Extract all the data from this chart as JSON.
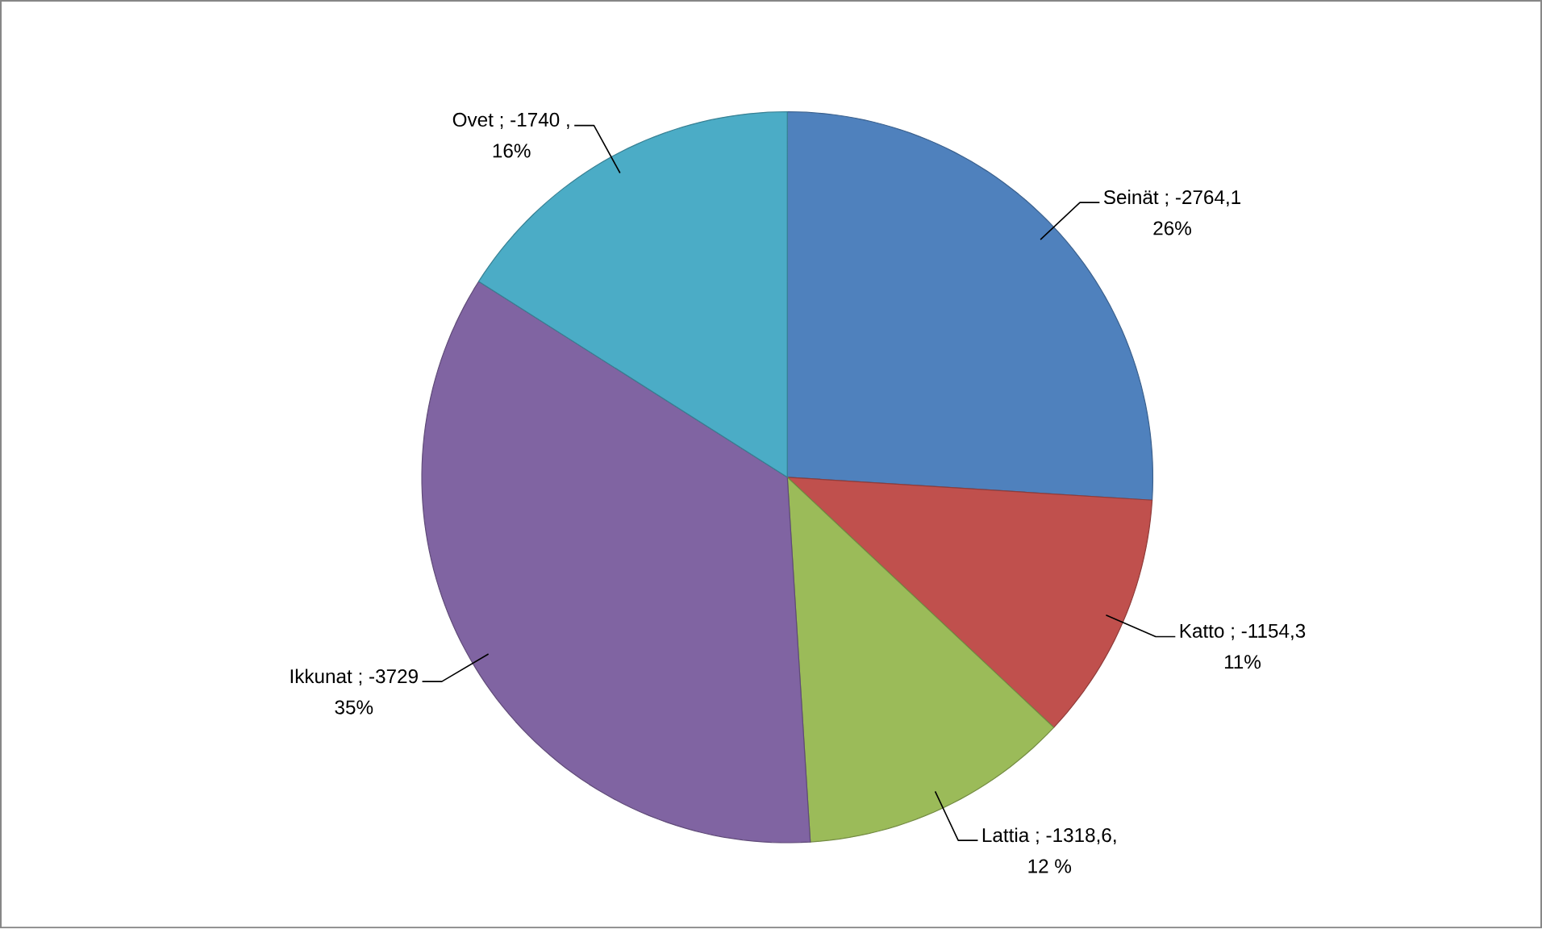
{
  "chart_data": {
    "type": "pie",
    "categories": [
      "Seinät",
      "Katto",
      "Lattia",
      "Ikkunat",
      "Ovet"
    ],
    "values": [
      26,
      11,
      12,
      35,
      16
    ],
    "value_labels": [
      "26%",
      "11%",
      "12 %",
      "35%",
      "16%"
    ],
    "annotations": [
      "; -2764,1",
      "; -1154,3",
      "; -1318,6,",
      "; -3729",
      "; -1740 ,"
    ],
    "colors": [
      "#4f81bd",
      "#c0504d",
      "#9bbb59",
      "#8064a2",
      "#4bacc6"
    ]
  }
}
